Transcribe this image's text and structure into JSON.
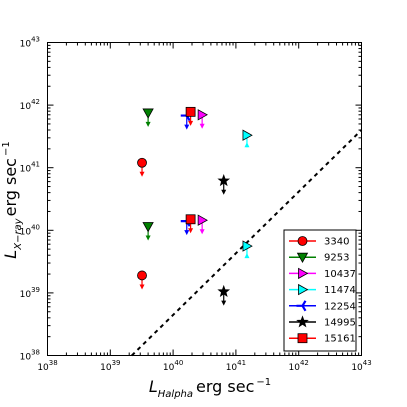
{
  "chart_data": {
    "type": "scatter",
    "xscale": "log",
    "yscale": "log",
    "xlim": [
      1e+38,
      1e+43
    ],
    "ylim": [
      1e+38,
      1e+43
    ],
    "x_ticks": [
      "10^38",
      "10^39",
      "10^40",
      "10^41",
      "10^42",
      "10^43"
    ],
    "y_ticks": [
      "10^38",
      "10^39",
      "10^40",
      "10^41",
      "10^42",
      "10^43"
    ],
    "xlabel_main": "L",
    "xlabel_sub": "Halpha",
    "xlabel_unit": "erg sec",
    "xlabel_exp": "−1",
    "ylabel_main": "L",
    "ylabel_sub": "X−ray",
    "ylabel_unit": "erg sec",
    "ylabel_exp": "−1",
    "reference_line": {
      "style": "dashed",
      "points": [
        [
          2.2e+39,
          1e+38
        ],
        [
          1e+43,
          4e+41
        ]
      ]
    },
    "legend_position": "lower-right",
    "series": [
      {
        "name": "3340",
        "color": "#ff0000",
        "marker": "circle",
        "points": [
          [
            3.2e+39,
            1.2e+41,
            "upper-limit"
          ],
          [
            3.2e+39,
            1.9e+39,
            "upper-limit"
          ]
        ]
      },
      {
        "name": "9253",
        "color": "#008000",
        "marker": "triangle-down",
        "points": [
          [
            4e+39,
            7.5e+41,
            "upper-limit"
          ],
          [
            4e+39,
            1.15e+40,
            "upper-limit"
          ]
        ]
      },
      {
        "name": "10437",
        "color": "#ff00ff",
        "marker": "triangle-right",
        "points": [
          [
            2.9e+40,
            7e+41,
            "upper-limit"
          ],
          [
            2.9e+40,
            1.45e+40,
            "upper-limit"
          ]
        ]
      },
      {
        "name": "11474",
        "color": "#00ffff",
        "marker": "triangle-right",
        "points": [
          [
            1.5e+41,
            3.3e+41,
            "lower-limit"
          ],
          [
            1.5e+41,
            5.6e+39,
            "lower-limit"
          ]
        ]
      },
      {
        "name": "12254",
        "color": "#0000ff",
        "marker": "tri-left",
        "points": [
          [
            1.65e+40,
            6.8e+41,
            "upper-limit"
          ],
          [
            1.65e+40,
            1.4e+40,
            "upper-limit"
          ]
        ]
      },
      {
        "name": "14995",
        "color": "#000000",
        "marker": "star",
        "points": [
          [
            6.4e+40,
            6.2e+40,
            "upper-limit"
          ],
          [
            6.4e+40,
            1.05e+39,
            "upper-limit"
          ]
        ]
      },
      {
        "name": "15161",
        "color": "#ff0000",
        "marker": "square",
        "points": [
          [
            1.9e+40,
            7.8e+41,
            "upper-limit"
          ],
          [
            1.9e+40,
            1.5e+40,
            "upper-limit"
          ]
        ]
      }
    ]
  }
}
